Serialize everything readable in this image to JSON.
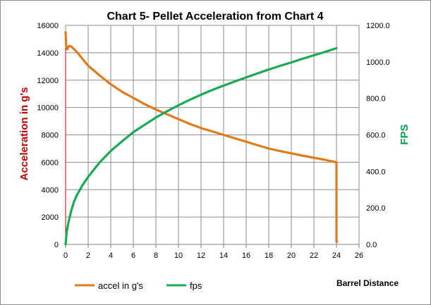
{
  "chart_data": {
    "type": "line",
    "title": "Chart 5- Pellet Acceleration from Chart 4",
    "xlabel": "Barrel Distance",
    "ylabel": "Acceleration in g's",
    "y2label": "FPS",
    "x_ticks": [
      "0",
      "2",
      "4",
      "6",
      "8",
      "10",
      "12",
      "14",
      "16",
      "18",
      "20",
      "22",
      "24",
      "26"
    ],
    "y_ticks": [
      "0",
      "2000",
      "4000",
      "6000",
      "8000",
      "10000",
      "12000",
      "14000",
      "16000"
    ],
    "y2_ticks": [
      "0.0",
      "200.0",
      "400.0",
      "600.0",
      "800.0",
      "1000.0",
      "1200.0"
    ],
    "xlim": [
      0,
      26
    ],
    "ylim": [
      0,
      16000
    ],
    "y2lim": [
      0,
      1200
    ],
    "grid": true,
    "legend_position": "bottom-left",
    "series": [
      {
        "name": "accel  in g's",
        "axis": "left",
        "color": "#e07b1a",
        "x": [
          0,
          0.05,
          0.15,
          0.3,
          0.5,
          0.7,
          1,
          1.5,
          2,
          3,
          4,
          5,
          6,
          7,
          8,
          9,
          10,
          11,
          12,
          13,
          14,
          15,
          16,
          17,
          18,
          19,
          20,
          21,
          22,
          23,
          24,
          24,
          24.05
        ],
        "values": [
          15500,
          14500,
          14250,
          14500,
          14450,
          14300,
          14050,
          13550,
          13050,
          12350,
          11700,
          11150,
          10700,
          10250,
          9850,
          9500,
          9150,
          8800,
          8500,
          8250,
          8000,
          7750,
          7500,
          7250,
          7000,
          6820,
          6650,
          6480,
          6330,
          6180,
          6000,
          200,
          200
        ]
      },
      {
        "name": "fps",
        "axis": "right",
        "color": "#1aaa55",
        "x": [
          0,
          0.1,
          0.25,
          0.5,
          0.75,
          1,
          1.5,
          2,
          3,
          4,
          5,
          6,
          7,
          8,
          9,
          10,
          11,
          12,
          13,
          14,
          15,
          16,
          17,
          18,
          19,
          20,
          21,
          22,
          23,
          24
        ],
        "values": [
          0,
          70,
          120,
          185,
          235,
          270,
          325,
          370,
          448,
          512,
          565,
          615,
          655,
          695,
          730,
          762,
          792,
          820,
          846,
          870,
          893,
          915,
          937,
          958,
          978,
          997,
          1017,
          1036,
          1055,
          1075
        ]
      }
    ]
  }
}
